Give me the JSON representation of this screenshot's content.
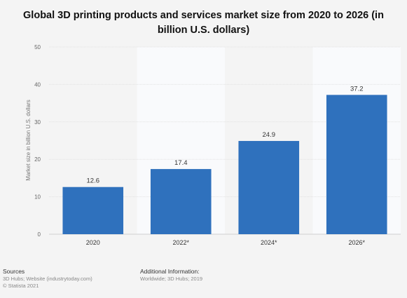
{
  "chart_data": {
    "type": "bar",
    "title": "Global 3D printing products and services market size from 2020 to 2026 (in billion U.S. dollars)",
    "xlabel": "",
    "ylabel": "Market size in billion U.S. dollars",
    "categories": [
      "2020",
      "2022*",
      "2024*",
      "2026*"
    ],
    "values": [
      12.6,
      17.4,
      24.9,
      37.2
    ],
    "data_labels": [
      "12.6",
      "17.4",
      "24.9",
      "37.2"
    ],
    "y_ticks": [
      "0",
      "10",
      "20",
      "30",
      "40",
      "50"
    ],
    "ylim": [
      0,
      50
    ],
    "grid": true,
    "legend": "none",
    "bar_color": "#2f71bd",
    "shaded_bands_color": "#f9fafc"
  },
  "footer": {
    "sources_heading": "Sources",
    "sources_line1": "3D Hubs; Website (industrytoday.com)",
    "sources_line2": "© Statista 2021",
    "info_heading": "Additional Information:",
    "info_line1": "Worldwide; 3D Hubs; 2019"
  }
}
